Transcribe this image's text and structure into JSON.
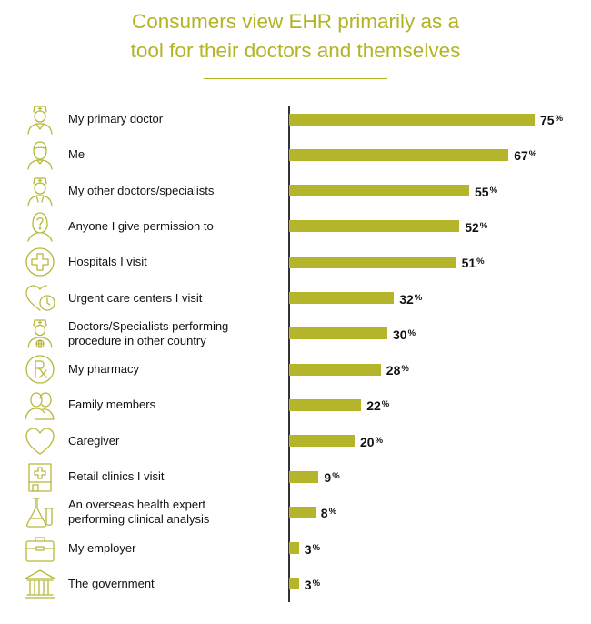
{
  "title_lines": [
    "Consumers view EHR primarily as a",
    "tool for their doctors and themselves"
  ],
  "colors": {
    "accent": "#b2b424",
    "bar": "#b4b52b",
    "icon": "#b6b83a",
    "axis": "#333333",
    "text": "#111111"
  },
  "chart_data": {
    "type": "bar",
    "orientation": "horizontal",
    "title": "Consumers view EHR primarily as a tool for their doctors and themselves",
    "categories": [
      "My primary doctor",
      "Me",
      "My other doctors/specialists",
      "Anyone I give permission to",
      "Hospitals I visit",
      "Urgent care centers I visit",
      "Doctors/Specialists performing procedure in other country",
      "My pharmacy",
      "Family members",
      "Caregiver",
      "Retail clinics I visit",
      "An overseas health expert performing clinical analysis",
      "My employer",
      "The government"
    ],
    "label_lines": [
      [
        "My primary doctor"
      ],
      [
        "Me"
      ],
      [
        "My other doctors/specialists"
      ],
      [
        "Anyone I give permission to"
      ],
      [
        "Hospitals I visit"
      ],
      [
        "Urgent care centers I visit"
      ],
      [
        "Doctors/Specialists performing",
        "procedure in other country"
      ],
      [
        "My pharmacy"
      ],
      [
        "Family members"
      ],
      [
        "Caregiver"
      ],
      [
        "Retail clinics I visit"
      ],
      [
        "An overseas health expert",
        "performing clinical analysis"
      ],
      [
        "My employer"
      ],
      [
        "The government"
      ]
    ],
    "icons": [
      "doctor-icon",
      "person-icon",
      "specialist-icon",
      "question-person-icon",
      "hospital-cross-icon",
      "heart-clock-icon",
      "doctor-globe-icon",
      "pharmacy-rx-icon",
      "family-icon",
      "heart-icon",
      "clinic-icon",
      "lab-flask-icon",
      "briefcase-icon",
      "government-building-icon"
    ],
    "values": [
      75,
      67,
      55,
      52,
      51,
      32,
      30,
      28,
      22,
      20,
      9,
      8,
      3,
      3
    ],
    "value_suffix": "%",
    "xlim": [
      0,
      100
    ],
    "grid": false,
    "legend": "none"
  }
}
